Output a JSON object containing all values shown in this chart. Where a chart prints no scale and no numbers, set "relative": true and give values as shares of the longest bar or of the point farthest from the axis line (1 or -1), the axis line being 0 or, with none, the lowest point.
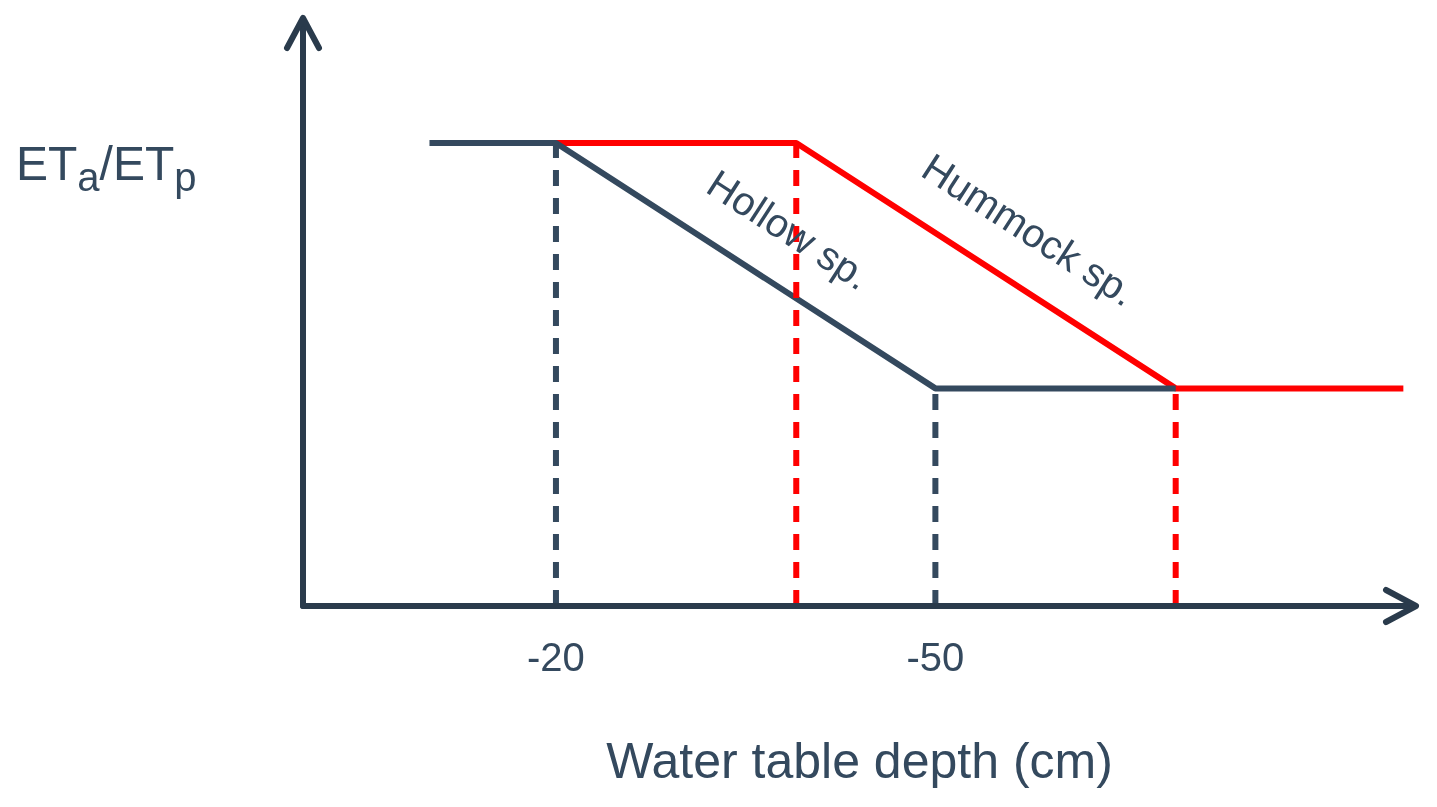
{
  "chart_data": {
    "type": "line",
    "xlabel": "Water table depth (cm)",
    "ylabel": "ET$_{a}$/ET$_{p}$",
    "relative": true,
    "xlim": [
      0,
      -88
    ],
    "xticks": [
      -20,
      -50
    ],
    "tick_labels": "x",
    "grid": false,
    "legend": false,
    "marker": "none",
    "series": [
      {
        "color": "#34495e",
        "x": [
          -20,
          -20
        ],
        "values": [
          0,
          1
        ],
        "line_style": "dashed"
      },
      {
        "color": "#34495e",
        "x": [
          -50,
          -50
        ],
        "values": [
          0,
          0.47
        ],
        "line_style": "dashed"
      },
      {
        "color": "#ff0000",
        "x": [
          -39,
          -39
        ],
        "values": [
          0,
          1
        ],
        "line_style": "dashed"
      },
      {
        "color": "#ff0000",
        "x": [
          -69,
          -69
        ],
        "values": [
          0,
          0.47
        ],
        "line_style": "dashed"
      },
      {
        "name": "Hollow sp.",
        "color": "#34495e",
        "x": [
          -10,
          -20,
          -50,
          -69
        ],
        "values": [
          1,
          1,
          0.47,
          0.47
        ],
        "line_style": "solid"
      },
      {
        "name": "Hummock sp.",
        "color": "#ff0000",
        "x": [
          -20,
          -39,
          -69,
          -87
        ],
        "values": [
          1,
          1,
          0.47,
          0.47
        ],
        "line_style": "solid"
      }
    ]
  }
}
